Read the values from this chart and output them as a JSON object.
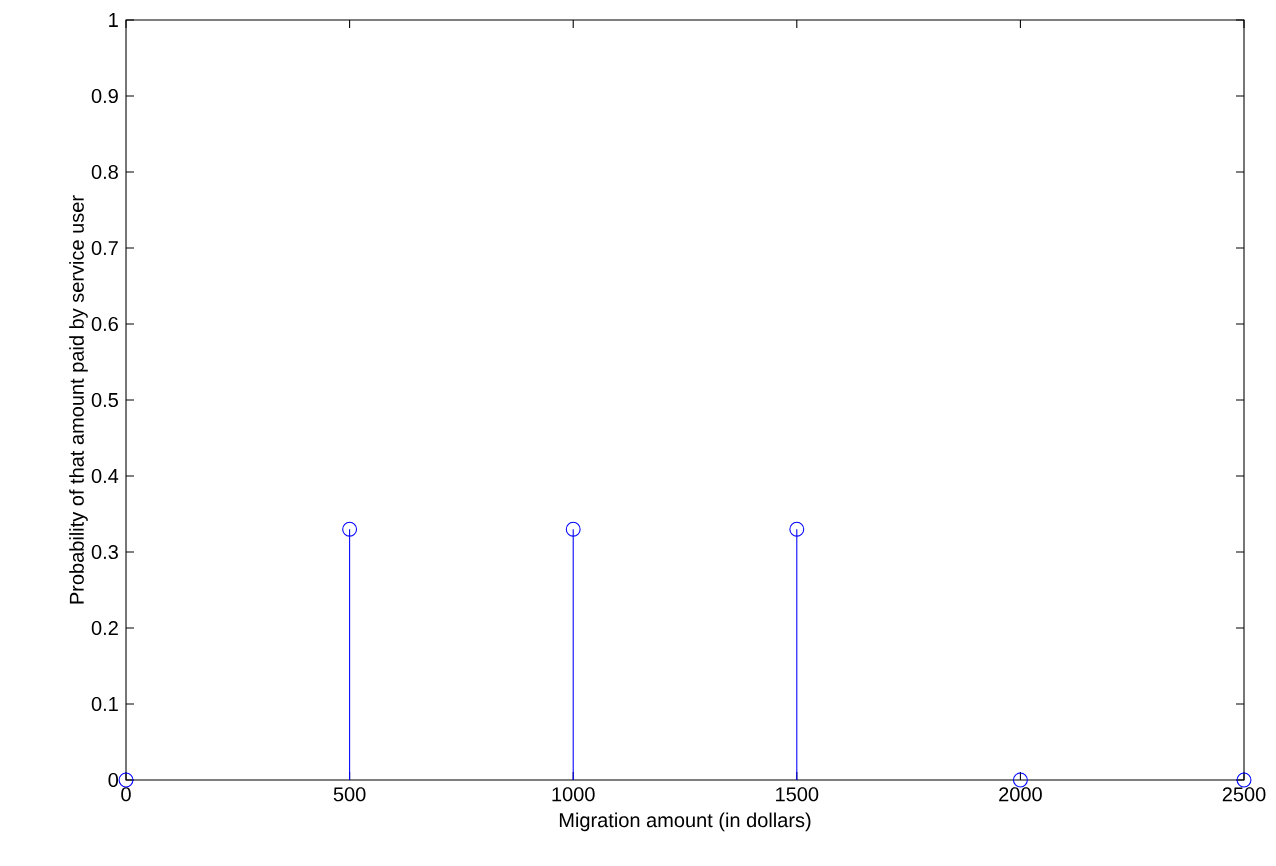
{
  "chart_data": {
    "type": "lollipop",
    "xlabel": "Migration amount (in dollars)",
    "ylabel": "Probability of that amount paid by service user",
    "x": [
      0,
      500,
      1000,
      1500,
      2000,
      2500
    ],
    "values": [
      0,
      0.33,
      0.33,
      0.33,
      0,
      0
    ],
    "color": "#0000ff",
    "marker": "circle",
    "xlim": [
      0,
      2500
    ],
    "ylim": [
      0,
      1
    ],
    "xticks": [
      0,
      500,
      1000,
      1500,
      2000,
      2500
    ],
    "yticks": [
      0,
      0.1,
      0.2,
      0.3,
      0.4,
      0.5,
      0.6,
      0.7,
      0.8,
      0.9,
      1
    ]
  }
}
